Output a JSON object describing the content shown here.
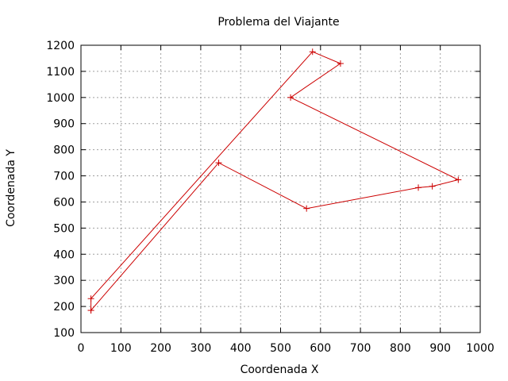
{
  "chart_data": {
    "type": "line",
    "title": "Problema del Viajante",
    "xlabel": "Coordenada X",
    "ylabel": "Coordenada Y",
    "xlim": [
      0,
      1000
    ],
    "ylim": [
      100,
      1200
    ],
    "xticks": [
      0,
      100,
      200,
      300,
      400,
      500,
      600,
      700,
      800,
      900,
      1000
    ],
    "yticks": [
      100,
      200,
      300,
      400,
      500,
      600,
      700,
      800,
      900,
      1000,
      1100,
      1200
    ],
    "grid": true,
    "series": [
      {
        "color": "#cc0000",
        "marker": "plus",
        "points": [
          [
            25,
            185
          ],
          [
            345,
            750
          ],
          [
            565,
            575
          ],
          [
            845,
            655
          ],
          [
            880,
            660
          ],
          [
            945,
            685
          ],
          [
            525,
            1000
          ],
          [
            650,
            1130
          ],
          [
            580,
            1175
          ],
          [
            25,
            230
          ],
          [
            25,
            185
          ]
        ]
      }
    ]
  }
}
